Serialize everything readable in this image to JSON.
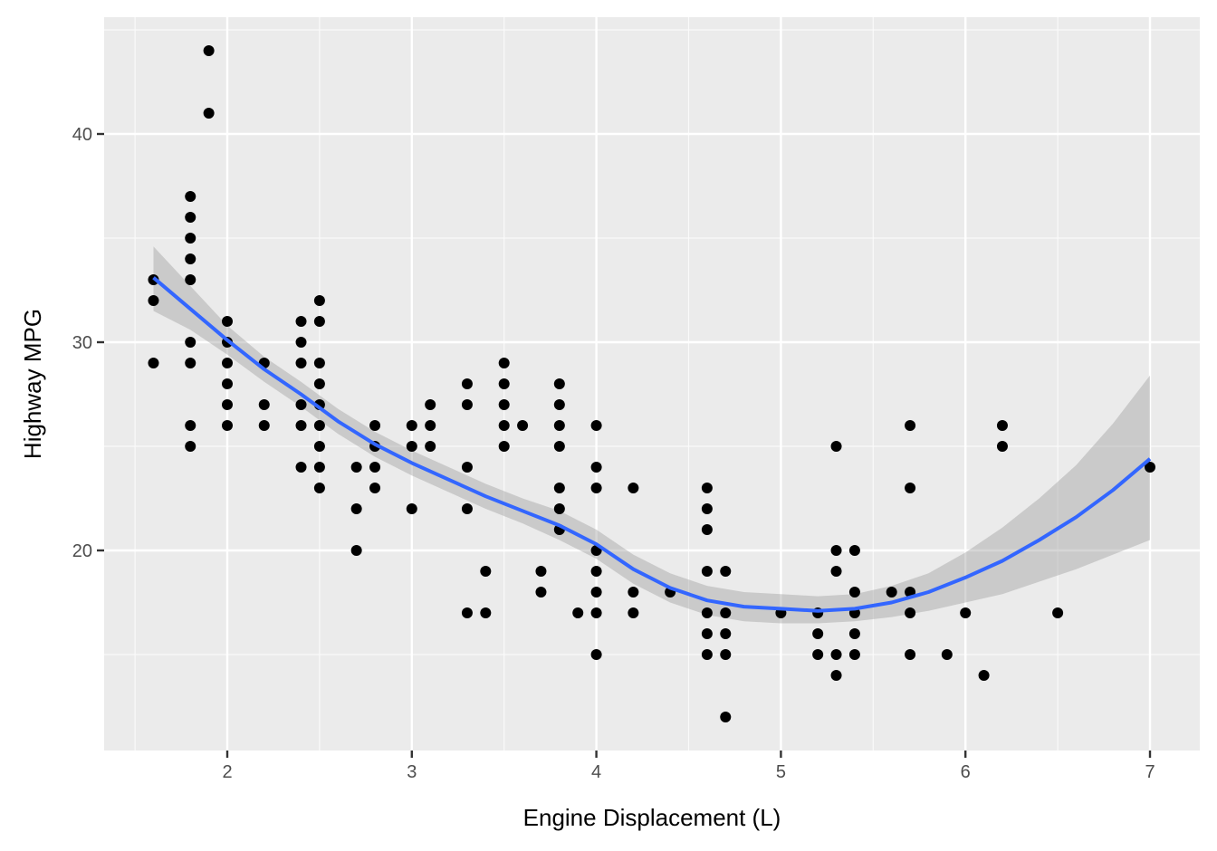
{
  "chart_data": {
    "type": "scatter",
    "title": "",
    "xlabel": "Engine Displacement (L)",
    "ylabel": "Highway MPG",
    "xlim": [
      1.33,
      7.27
    ],
    "ylim": [
      10.4,
      45.6
    ],
    "x_ticks": [
      2,
      3,
      4,
      5,
      6,
      7
    ],
    "y_ticks": [
      20,
      30,
      40
    ],
    "x_minor": [
      1.5,
      2.5,
      3.5,
      4.5,
      5.5,
      6.5
    ],
    "y_minor": [
      15,
      25,
      35,
      45
    ],
    "grid": true,
    "legend": null,
    "colors": {
      "panel_bg": "#ebebeb",
      "grid_major": "#ffffff",
      "points": "#000000",
      "smooth_line": "#3366ff",
      "ribbon": "#999999"
    },
    "points": [
      [
        1.6,
        33
      ],
      [
        1.6,
        32
      ],
      [
        1.6,
        29
      ],
      [
        1.8,
        37
      ],
      [
        1.8,
        36
      ],
      [
        1.8,
        35
      ],
      [
        1.8,
        34
      ],
      [
        1.8,
        33
      ],
      [
        1.8,
        30
      ],
      [
        1.8,
        29
      ],
      [
        1.8,
        26
      ],
      [
        1.8,
        25
      ],
      [
        1.9,
        44
      ],
      [
        1.9,
        41
      ],
      [
        2.0,
        31
      ],
      [
        2.0,
        30
      ],
      [
        2.0,
        29
      ],
      [
        2.0,
        28
      ],
      [
        2.0,
        27
      ],
      [
        2.0,
        26
      ],
      [
        2.2,
        29
      ],
      [
        2.2,
        27
      ],
      [
        2.2,
        26
      ],
      [
        2.4,
        31
      ],
      [
        2.4,
        30
      ],
      [
        2.4,
        29
      ],
      [
        2.4,
        27
      ],
      [
        2.4,
        26
      ],
      [
        2.4,
        24
      ],
      [
        2.5,
        32
      ],
      [
        2.5,
        31
      ],
      [
        2.5,
        29
      ],
      [
        2.5,
        28
      ],
      [
        2.5,
        27
      ],
      [
        2.5,
        26
      ],
      [
        2.5,
        25
      ],
      [
        2.5,
        24
      ],
      [
        2.5,
        23
      ],
      [
        2.7,
        24
      ],
      [
        2.7,
        22
      ],
      [
        2.7,
        20
      ],
      [
        2.8,
        26
      ],
      [
        2.8,
        25
      ],
      [
        2.8,
        24
      ],
      [
        2.8,
        23
      ],
      [
        3.0,
        26
      ],
      [
        3.0,
        25
      ],
      [
        3.0,
        22
      ],
      [
        3.1,
        27
      ],
      [
        3.1,
        26
      ],
      [
        3.1,
        25
      ],
      [
        3.3,
        28
      ],
      [
        3.3,
        27
      ],
      [
        3.3,
        24
      ],
      [
        3.3,
        22
      ],
      [
        3.3,
        17
      ],
      [
        3.4,
        19
      ],
      [
        3.4,
        17
      ],
      [
        3.5,
        29
      ],
      [
        3.5,
        28
      ],
      [
        3.5,
        27
      ],
      [
        3.5,
        26
      ],
      [
        3.5,
        25
      ],
      [
        3.6,
        26
      ],
      [
        3.7,
        19
      ],
      [
        3.7,
        18
      ],
      [
        3.8,
        28
      ],
      [
        3.8,
        27
      ],
      [
        3.8,
        26
      ],
      [
        3.8,
        25
      ],
      [
        3.8,
        23
      ],
      [
        3.8,
        22
      ],
      [
        3.8,
        21
      ],
      [
        3.9,
        17
      ],
      [
        4.0,
        26
      ],
      [
        4.0,
        24
      ],
      [
        4.0,
        23
      ],
      [
        4.0,
        20
      ],
      [
        4.0,
        19
      ],
      [
        4.0,
        18
      ],
      [
        4.0,
        17
      ],
      [
        4.0,
        15
      ],
      [
        4.2,
        23
      ],
      [
        4.2,
        18
      ],
      [
        4.2,
        17
      ],
      [
        4.4,
        18
      ],
      [
        4.6,
        23
      ],
      [
        4.6,
        22
      ],
      [
        4.6,
        21
      ],
      [
        4.6,
        19
      ],
      [
        4.6,
        17
      ],
      [
        4.6,
        16
      ],
      [
        4.6,
        15
      ],
      [
        4.7,
        19
      ],
      [
        4.7,
        17
      ],
      [
        4.7,
        16
      ],
      [
        4.7,
        15
      ],
      [
        4.7,
        12
      ],
      [
        5.0,
        17
      ],
      [
        5.2,
        17
      ],
      [
        5.2,
        16
      ],
      [
        5.2,
        15
      ],
      [
        5.3,
        25
      ],
      [
        5.3,
        20
      ],
      [
        5.3,
        19
      ],
      [
        5.3,
        15
      ],
      [
        5.3,
        14
      ],
      [
        5.4,
        20
      ],
      [
        5.4,
        18
      ],
      [
        5.4,
        17
      ],
      [
        5.4,
        16
      ],
      [
        5.4,
        15
      ],
      [
        5.6,
        18
      ],
      [
        5.7,
        26
      ],
      [
        5.7,
        23
      ],
      [
        5.7,
        18
      ],
      [
        5.7,
        17
      ],
      [
        5.7,
        15
      ],
      [
        5.9,
        15
      ],
      [
        6.0,
        17
      ],
      [
        6.1,
        14
      ],
      [
        6.2,
        26
      ],
      [
        6.2,
        25
      ],
      [
        6.5,
        17
      ],
      [
        7.0,
        24
      ]
    ],
    "smooth": {
      "method": "loess",
      "x": [
        1.6,
        1.8,
        2.0,
        2.2,
        2.4,
        2.6,
        2.8,
        3.0,
        3.2,
        3.4,
        3.6,
        3.8,
        4.0,
        4.2,
        4.4,
        4.6,
        4.8,
        5.0,
        5.2,
        5.4,
        5.6,
        5.8,
        6.0,
        6.2,
        6.4,
        6.6,
        6.8,
        7.0
      ],
      "y": [
        33.1,
        31.6,
        30.1,
        28.7,
        27.5,
        26.2,
        25.1,
        24.2,
        23.4,
        22.6,
        21.9,
        21.2,
        20.3,
        19.1,
        18.2,
        17.6,
        17.3,
        17.2,
        17.1,
        17.2,
        17.5,
        18.0,
        18.7,
        19.5,
        20.5,
        21.6,
        22.9,
        24.4
      ],
      "ymin": [
        31.5,
        30.6,
        29.4,
        28.1,
        26.9,
        25.6,
        24.5,
        23.6,
        22.8,
        22.0,
        21.3,
        20.5,
        19.6,
        18.4,
        17.5,
        16.9,
        16.6,
        16.5,
        16.5,
        16.6,
        16.8,
        17.1,
        17.5,
        17.9,
        18.5,
        19.1,
        19.8,
        20.5
      ],
      "ymax": [
        34.6,
        32.7,
        30.8,
        29.3,
        28.1,
        26.8,
        25.7,
        24.8,
        24.0,
        23.2,
        22.5,
        21.9,
        21.0,
        19.8,
        18.9,
        18.3,
        18.0,
        17.9,
        17.8,
        17.9,
        18.3,
        18.9,
        19.9,
        21.1,
        22.5,
        24.1,
        26.1,
        28.4
      ]
    }
  },
  "axes": {
    "x_title": "Engine Displacement (L)",
    "y_title": "Highway MPG",
    "x_tick_labels": [
      "2",
      "3",
      "4",
      "5",
      "6",
      "7"
    ],
    "y_tick_labels": [
      "20",
      "30",
      "40"
    ]
  }
}
